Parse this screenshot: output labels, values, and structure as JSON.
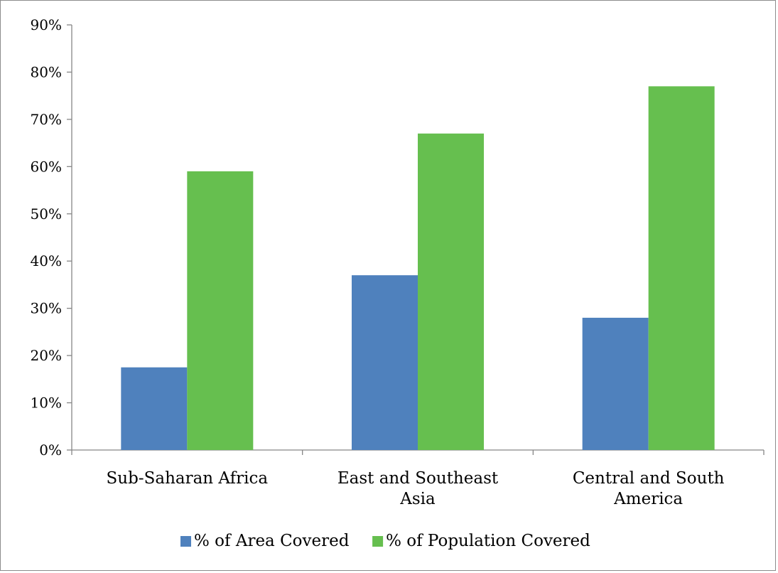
{
  "chart_data": {
    "type": "bar",
    "title": "",
    "xlabel": "",
    "ylabel": "",
    "categories": [
      [
        "Sub-Saharan Africa"
      ],
      [
        "East and Southeast",
        "Asia"
      ],
      [
        "Central and South",
        "America"
      ]
    ],
    "series": [
      {
        "name": "% of Area Covered",
        "color": "#4f81bd",
        "values": [
          17.5,
          37,
          28
        ]
      },
      {
        "name": "% of Population Covered",
        "color": "#66bf4f",
        "values": [
          59,
          67,
          77
        ]
      }
    ],
    "ylim": [
      0,
      90
    ],
    "ytick_step": 10,
    "ytick_format": "percent",
    "yticks": [
      "0%",
      "10%",
      "20%",
      "30%",
      "40%",
      "50%",
      "60%",
      "70%",
      "80%",
      "90%"
    ],
    "grid": false,
    "legend_position": "bottom"
  }
}
